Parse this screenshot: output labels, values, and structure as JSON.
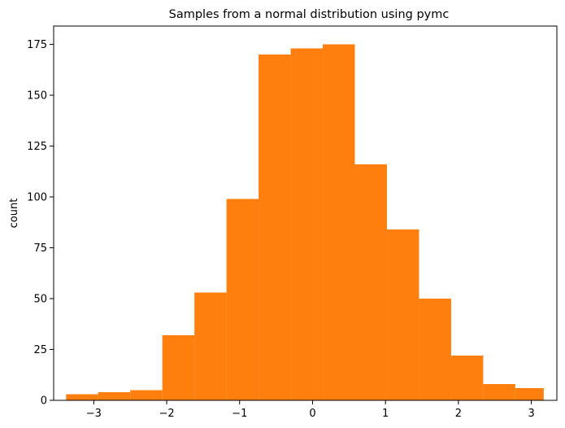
{
  "chart_data": {
    "type": "bar",
    "title": "Samples from a normal distribution using pymc",
    "xlabel": "",
    "ylabel": "count",
    "bar_color": "#ff7f0e",
    "xlim": [
      -3.55,
      3.35
    ],
    "ylim": [
      0,
      184
    ],
    "x_ticks": [
      -3,
      -2,
      -1,
      0,
      1,
      2,
      3
    ],
    "x_tick_labels": [
      "−3",
      "−2",
      "−1",
      "0",
      "1",
      "2",
      "3"
    ],
    "y_ticks": [
      0,
      25,
      50,
      75,
      100,
      125,
      150,
      175
    ],
    "y_tick_labels": [
      "0",
      "25",
      "50",
      "75",
      "100",
      "125",
      "150",
      "175"
    ],
    "bin_edges": [
      -3.38,
      -2.94,
      -2.5,
      -2.06,
      -1.62,
      -1.18,
      -0.74,
      -0.3,
      0.14,
      0.58,
      1.02,
      1.46,
      1.9,
      2.34,
      2.78,
      3.17
    ],
    "counts": [
      3,
      4,
      5,
      32,
      53,
      99,
      170,
      173,
      175,
      116,
      84,
      50,
      22,
      8,
      6
    ],
    "grid": false,
    "legend": "none"
  }
}
